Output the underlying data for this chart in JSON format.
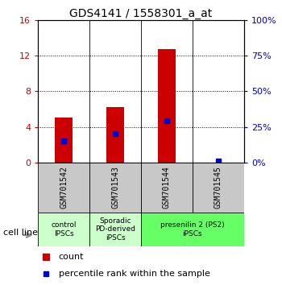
{
  "title": "GDS4141 / 1558301_a_at",
  "samples": [
    "GSM701542",
    "GSM701543",
    "GSM701544",
    "GSM701545"
  ],
  "counts": [
    5.0,
    6.2,
    12.7,
    0.0
  ],
  "percentile_ranks": [
    15.0,
    20.0,
    29.0,
    1.0
  ],
  "ylim_left": [
    0,
    16
  ],
  "ylim_right": [
    0,
    100
  ],
  "yticks_left": [
    0,
    4,
    8,
    12,
    16
  ],
  "yticks_right": [
    0,
    25,
    50,
    75,
    100
  ],
  "ytick_labels_left": [
    "0",
    "4",
    "8",
    "12",
    "16"
  ],
  "ytick_labels_right": [
    "0%",
    "25%",
    "50%",
    "75%",
    "100%"
  ],
  "bar_color": "#cc0000",
  "marker_color": "#0000cc",
  "bar_width": 0.35,
  "cell_line_label": "cell line",
  "legend_count_label": "count",
  "legend_percentile_label": "percentile rank within the sample",
  "plot_bg_color": "#ffffff",
  "sample_area_color": "#c8c8c8",
  "group_info": [
    [
      0,
      0,
      "control\nIPSCs",
      "#ccffcc"
    ],
    [
      1,
      1,
      "Sporadic\nPD-derived\niPSCs",
      "#ccffcc"
    ],
    [
      2,
      3,
      "presenilin 2 (PS2)\niPSCs",
      "#66ff66"
    ]
  ],
  "title_fontsize": 10,
  "tick_fontsize": 8,
  "label_fontsize": 8
}
